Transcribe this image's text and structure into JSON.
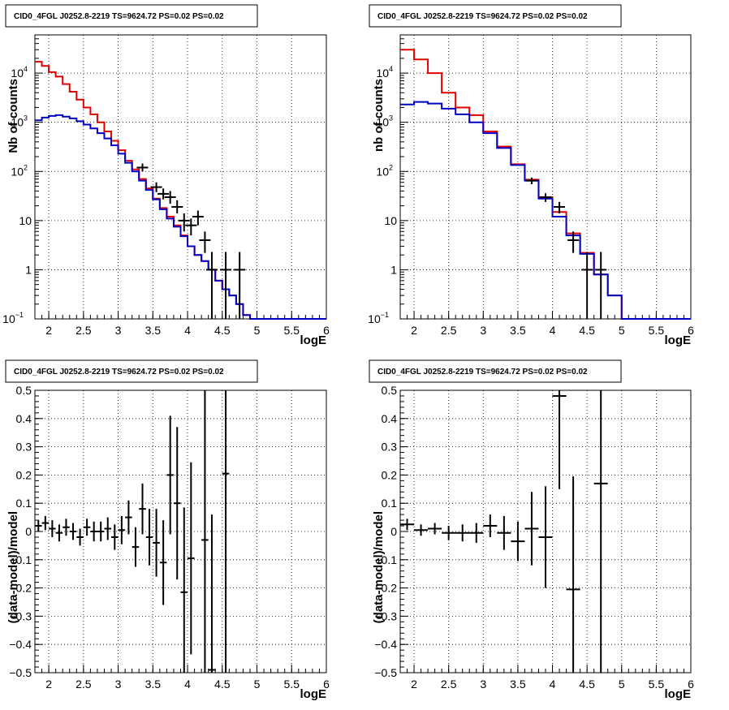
{
  "chart_data": [
    {
      "type": "line",
      "title": "CID0_4FGL J0252.8-2219 TS=9624.72 PS=0.02 PS=0.02",
      "xlabel": "logE",
      "ylabel": "Nb of counts",
      "scale_y": "log",
      "xlim": [
        1.8,
        6.0
      ],
      "ylim": [
        0.1,
        60000
      ],
      "grid": true,
      "x_ticks": [
        "2",
        "2.5",
        "3",
        "3.5",
        "4",
        "4.5",
        "5",
        "5.5",
        "6"
      ],
      "y_ticks": [
        {
          "value": 0.1,
          "base": "10",
          "exp": "−1"
        },
        {
          "value": 1,
          "label": "1"
        },
        {
          "value": 10,
          "label": "10"
        },
        {
          "value": 100,
          "base": "10",
          "exp": "2"
        },
        {
          "value": 1000,
          "base": "10",
          "exp": "3"
        },
        {
          "value": 10000,
          "base": "10",
          "exp": "4"
        }
      ],
      "bin_edges": [
        1.8,
        1.9,
        2.0,
        2.1,
        2.2,
        2.3,
        2.4,
        2.5,
        2.6,
        2.7,
        2.8,
        2.9,
        3.0,
        3.1,
        3.2,
        3.3,
        3.4,
        3.5,
        3.6,
        3.7,
        3.8,
        3.9,
        4.0,
        4.1,
        4.2,
        4.3,
        4.4,
        4.5,
        4.6,
        4.7,
        4.8,
        4.9,
        5.0,
        5.1,
        5.2,
        5.3,
        5.4,
        5.5,
        5.6,
        5.7,
        5.8,
        5.9,
        6.0
      ],
      "series": [
        {
          "color": "#e00000",
          "values": [
            17000,
            14000,
            10500,
            8500,
            6000,
            4200,
            2900,
            2000,
            1450,
            1000,
            650,
            420,
            270,
            165,
            110,
            70,
            45,
            28,
            18,
            12,
            8,
            5,
            3,
            2,
            1.5,
            1.0,
            0.6,
            0.4,
            0.3,
            0.2,
            0.12,
            0.1,
            0.1,
            0.1,
            0.1,
            0.1,
            0.1,
            0.1,
            0.1,
            0.1,
            0.1,
            0.1
          ]
        },
        {
          "color": "#0000c0",
          "values": [
            1100,
            1250,
            1350,
            1400,
            1300,
            1200,
            1050,
            900,
            750,
            600,
            470,
            340,
            230,
            150,
            100,
            65,
            42,
            27,
            17,
            11,
            7.5,
            4.8,
            3,
            2,
            1.5,
            1.0,
            0.6,
            0.4,
            0.3,
            0.2,
            0.12,
            0.1,
            0.1,
            0.1,
            0.1,
            0.1,
            0.1,
            0.1,
            0.1,
            0.1,
            0.1,
            0.1
          ]
        }
      ],
      "points": [
        {
          "x": 3.35,
          "y": 120,
          "ylo": 100,
          "yhi": 145
        },
        {
          "x": 3.55,
          "y": 48,
          "ylo": 38,
          "yhi": 60
        },
        {
          "x": 3.65,
          "y": 35,
          "ylo": 27,
          "yhi": 45
        },
        {
          "x": 3.75,
          "y": 30,
          "ylo": 22,
          "yhi": 40
        },
        {
          "x": 3.85,
          "y": 19,
          "ylo": 14,
          "yhi": 26
        },
        {
          "x": 3.95,
          "y": 10,
          "ylo": 6,
          "yhi": 14
        },
        {
          "x": 4.05,
          "y": 8,
          "ylo": 5,
          "yhi": 11
        },
        {
          "x": 4.15,
          "y": 12,
          "ylo": 8,
          "yhi": 16
        },
        {
          "x": 4.25,
          "y": 4,
          "ylo": 2.2,
          "yhi": 6
        },
        {
          "x": 4.35,
          "y": 1,
          "ylo": 0.1,
          "yhi": 2.3
        },
        {
          "x": 4.55,
          "y": 1,
          "ylo": 0.1,
          "yhi": 2.3
        },
        {
          "x": 4.75,
          "y": 1,
          "ylo": 0.1,
          "yhi": 2.3
        }
      ]
    },
    {
      "type": "line",
      "title": "CID0_4FGL J0252.8-2219 TS=9624.72 PS=0.02 PS=0.02",
      "xlabel": "logE",
      "ylabel": "nb of counts",
      "scale_y": "log",
      "xlim": [
        1.8,
        6.0
      ],
      "ylim": [
        0.1,
        60000
      ],
      "grid": true,
      "x_ticks": [
        "2",
        "2.5",
        "3",
        "3.5",
        "4",
        "4.5",
        "5",
        "5.5",
        "6"
      ],
      "y_ticks": [
        {
          "value": 0.1,
          "base": "10",
          "exp": "−1"
        },
        {
          "value": 1,
          "label": "1"
        },
        {
          "value": 10,
          "label": "10"
        },
        {
          "value": 100,
          "base": "10",
          "exp": "2"
        },
        {
          "value": 1000,
          "base": "10",
          "exp": "3"
        },
        {
          "value": 10000,
          "base": "10",
          "exp": "4"
        }
      ],
      "bin_edges": [
        1.8,
        2.0,
        2.2,
        2.4,
        2.6,
        2.8,
        3.0,
        3.2,
        3.4,
        3.6,
        3.8,
        4.0,
        4.2,
        4.4,
        4.6,
        4.8,
        5.0,
        5.2,
        5.4,
        5.6,
        5.8,
        6.0
      ],
      "series": [
        {
          "color": "#e00000",
          "values": [
            30000,
            19000,
            10000,
            4000,
            2000,
            1400,
            650,
            320,
            140,
            68,
            30,
            15,
            5.5,
            2.2,
            0.8,
            0.3,
            0.1,
            0.1,
            0.1,
            0.1,
            0.1
          ]
        },
        {
          "color": "#0000c0",
          "values": [
            2300,
            2600,
            2400,
            1900,
            1450,
            1000,
            600,
            300,
            135,
            65,
            28,
            12,
            5,
            2.1,
            0.8,
            0.3,
            0.1,
            0.1,
            0.1,
            0.1,
            0.1
          ]
        }
      ],
      "points": [
        {
          "x": 3.7,
          "y": 65,
          "ylo": 55,
          "yhi": 75
        },
        {
          "x": 3.9,
          "y": 30,
          "ylo": 24,
          "yhi": 36
        },
        {
          "x": 4.1,
          "y": 19,
          "ylo": 14,
          "yhi": 24
        },
        {
          "x": 4.3,
          "y": 4,
          "ylo": 2.2,
          "yhi": 6
        },
        {
          "x": 4.5,
          "y": 1,
          "ylo": 0.1,
          "yhi": 2.3
        },
        {
          "x": 4.7,
          "y": 1,
          "ylo": 0.1,
          "yhi": 2.3
        }
      ]
    },
    {
      "type": "scatter",
      "title": "CID0_4FGL J0252.8-2219 TS=9624.72 PS=0.02 PS=0.02",
      "xlabel": "logE",
      "ylabel": "(data-model)/model",
      "xlim": [
        1.8,
        6.0
      ],
      "ylim": [
        -0.5,
        0.5
      ],
      "grid": true,
      "x_ticks": [
        "2",
        "2.5",
        "3",
        "3.5",
        "4",
        "4.5",
        "5",
        "5.5",
        "6"
      ],
      "y_ticks": [
        "−0.5",
        "−0.4",
        "−0.3",
        "−0.2",
        "−0.1",
        "0",
        "0.1",
        "0.2",
        "0.3",
        "0.4",
        "0.5"
      ],
      "xerr": 0.05,
      "points": [
        {
          "x": 1.85,
          "y": 0.02,
          "err": 0.02
        },
        {
          "x": 1.95,
          "y": 0.03,
          "err": 0.025
        },
        {
          "x": 2.05,
          "y": 0.01,
          "err": 0.03
        },
        {
          "x": 2.15,
          "y": -0.005,
          "err": 0.03
        },
        {
          "x": 2.25,
          "y": 0.015,
          "err": 0.03
        },
        {
          "x": 2.35,
          "y": 0.0,
          "err": 0.03
        },
        {
          "x": 2.45,
          "y": -0.02,
          "err": 0.03
        },
        {
          "x": 2.55,
          "y": 0.015,
          "err": 0.03
        },
        {
          "x": 2.65,
          "y": 0.0,
          "err": 0.035
        },
        {
          "x": 2.75,
          "y": 0.0,
          "err": 0.035
        },
        {
          "x": 2.85,
          "y": 0.01,
          "err": 0.04
        },
        {
          "x": 2.95,
          "y": -0.02,
          "err": 0.045
        },
        {
          "x": 3.05,
          "y": 0.005,
          "err": 0.05
        },
        {
          "x": 3.15,
          "y": 0.05,
          "err": 0.06
        },
        {
          "x": 3.25,
          "y": -0.055,
          "err": 0.07
        },
        {
          "x": 3.35,
          "y": 0.08,
          "err": 0.09
        },
        {
          "x": 3.45,
          "y": -0.02,
          "err": 0.1
        },
        {
          "x": 3.55,
          "y": -0.04,
          "err": 0.12
        },
        {
          "x": 3.65,
          "y": -0.11,
          "err": 0.15
        },
        {
          "x": 3.75,
          "y": 0.2,
          "err": 0.21
        },
        {
          "x": 3.85,
          "y": 0.1,
          "err": 0.27
        },
        {
          "x": 3.95,
          "y": -0.215,
          "err": 0.3
        },
        {
          "x": 4.05,
          "y": -0.095,
          "err": 0.34
        },
        {
          "x": 4.25,
          "y": -0.03,
          "err": 0.6
        },
        {
          "x": 4.35,
          "y": -0.49,
          "err": 0.55
        },
        {
          "x": 4.55,
          "y": 0.205,
          "err": 0.9
        }
      ]
    },
    {
      "type": "scatter",
      "title": "CID0_4FGL J0252.8-2219 TS=9624.72 PS=0.02 PS=0.02",
      "xlabel": "logE",
      "ylabel": "(data-model)/model",
      "xlim": [
        1.8,
        6.0
      ],
      "ylim": [
        -0.5,
        0.5
      ],
      "grid": true,
      "x_ticks": [
        "2",
        "2.5",
        "3",
        "3.5",
        "4",
        "4.5",
        "5",
        "5.5",
        "6"
      ],
      "y_ticks": [
        "−0.5",
        "−0.4",
        "−0.3",
        "−0.2",
        "−0.1",
        "0",
        "0.1",
        "0.2",
        "0.3",
        "0.4",
        "0.5"
      ],
      "xerr": 0.1,
      "points": [
        {
          "x": 1.9,
          "y": 0.025,
          "err": 0.02
        },
        {
          "x": 2.1,
          "y": 0.005,
          "err": 0.02
        },
        {
          "x": 2.3,
          "y": 0.01,
          "err": 0.02
        },
        {
          "x": 2.5,
          "y": -0.005,
          "err": 0.025
        },
        {
          "x": 2.7,
          "y": -0.005,
          "err": 0.03
        },
        {
          "x": 2.9,
          "y": -0.005,
          "err": 0.035
        },
        {
          "x": 3.1,
          "y": 0.02,
          "err": 0.04
        },
        {
          "x": 3.3,
          "y": -0.005,
          "err": 0.06
        },
        {
          "x": 3.5,
          "y": -0.035,
          "err": 0.07
        },
        {
          "x": 3.7,
          "y": 0.01,
          "err": 0.13
        },
        {
          "x": 3.9,
          "y": -0.02,
          "err": 0.18
        },
        {
          "x": 4.1,
          "y": 0.48,
          "err": 0.33
        },
        {
          "x": 4.3,
          "y": -0.205,
          "err": 0.4
        },
        {
          "x": 4.7,
          "y": 0.17,
          "err": 0.9
        }
      ]
    }
  ]
}
